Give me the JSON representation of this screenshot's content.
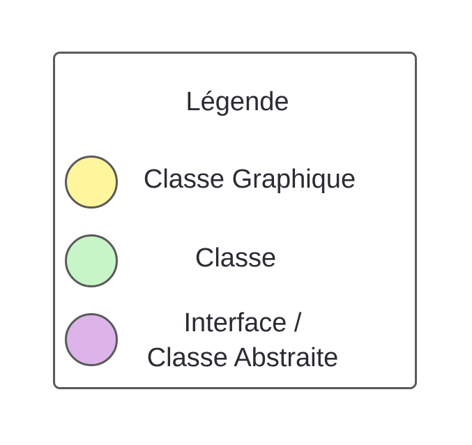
{
  "legend": {
    "title": "Légende",
    "items": [
      {
        "label": "Classe Graphique",
        "color": "#fff59d"
      },
      {
        "label": "Classe",
        "color": "#c8f5c8"
      },
      {
        "label_line1": "Interface /",
        "label_line2": "Classe Abstraite",
        "color": "#dcb4ea"
      }
    ],
    "border_color": "#5a5a5a",
    "text_color": "#2b2b33"
  }
}
